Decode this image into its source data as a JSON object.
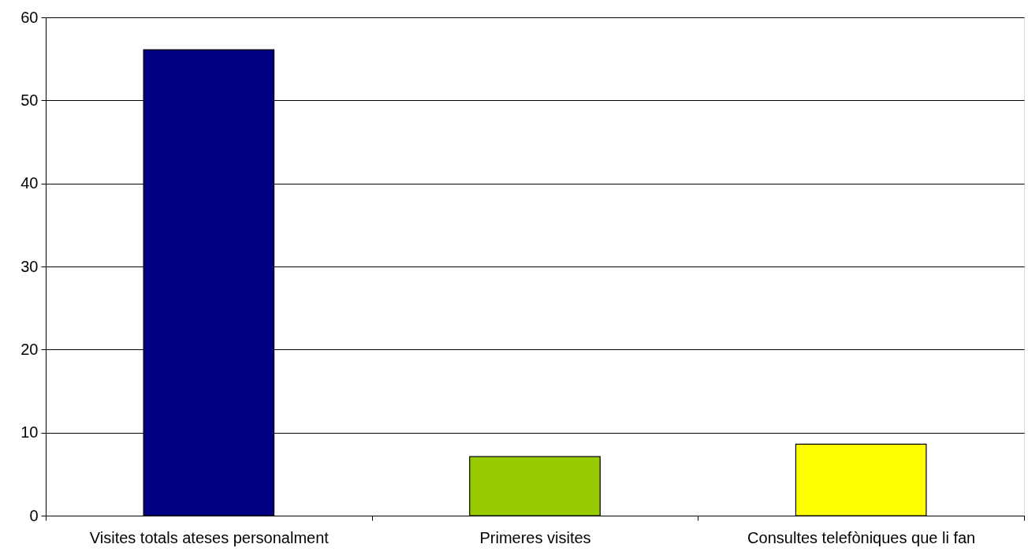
{
  "chart_data": {
    "type": "bar",
    "categories": [
      "Visites totals ateses personalment",
      "Primeres visites",
      "Consultes telefòniques que li fan"
    ],
    "values": [
      56.1,
      7.1,
      8.6
    ],
    "colors": [
      "#000080",
      "#99cc00",
      "#ffff00"
    ],
    "ylim": [
      0,
      60
    ],
    "yticks": [
      0,
      10,
      20,
      30,
      40,
      50,
      60
    ],
    "grid": "y"
  }
}
